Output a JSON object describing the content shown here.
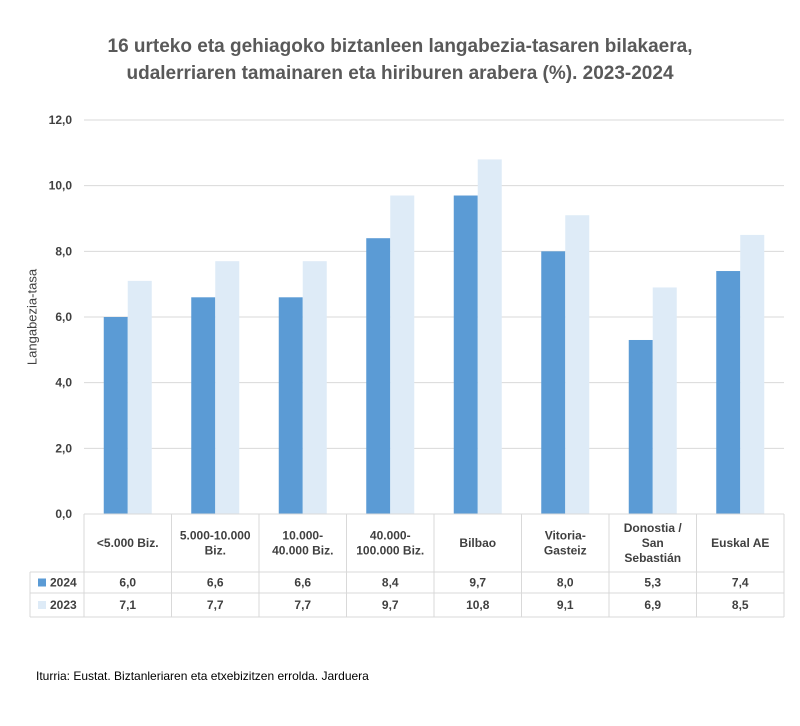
{
  "chart_data": {
    "type": "bar",
    "title_lines": [
      "16 urteko eta gehiagoko biztanleen langabezia-tasaren bilakaera,",
      "udalerriaren tamainaren eta hiriburen arabera (%). 2023-2024"
    ],
    "ylabel": "Langabezia-tasa",
    "ylim": [
      0,
      12
    ],
    "yticks": [
      "0,0",
      "2,0",
      "4,0",
      "6,0",
      "8,0",
      "10,0",
      "12,0"
    ],
    "grid": true,
    "categories": [
      [
        "<5.000 Biz."
      ],
      [
        "5.000-10.000",
        "Biz."
      ],
      [
        "10.000-",
        "40.000 Biz."
      ],
      [
        "40.000-",
        "100.000 Biz."
      ],
      [
        "Bilbao"
      ],
      [
        "Vitoria-",
        "Gasteiz"
      ],
      [
        "Donostia /",
        "San",
        "Sebastián"
      ],
      [
        "Euskal AE"
      ]
    ],
    "series": [
      {
        "name": "2024",
        "color": "#5b9bd5",
        "values": [
          6.0,
          6.6,
          6.6,
          8.4,
          9.7,
          8.0,
          5.3,
          7.4
        ],
        "labels": [
          "6,0",
          "6,6",
          "6,6",
          "8,4",
          "9,7",
          "8,0",
          "5,3",
          "7,4"
        ]
      },
      {
        "name": "2023",
        "color": "#deebf7",
        "values": [
          7.1,
          7.7,
          7.7,
          9.7,
          10.8,
          9.1,
          6.9,
          8.5
        ],
        "labels": [
          "7,1",
          "7,7",
          "7,7",
          "9,7",
          "10,8",
          "9,1",
          "6,9",
          "8,5"
        ]
      }
    ]
  },
  "source": "Iturria: Eustat. Biztanleriaren eta etxebizitzen errolda. Jarduera"
}
